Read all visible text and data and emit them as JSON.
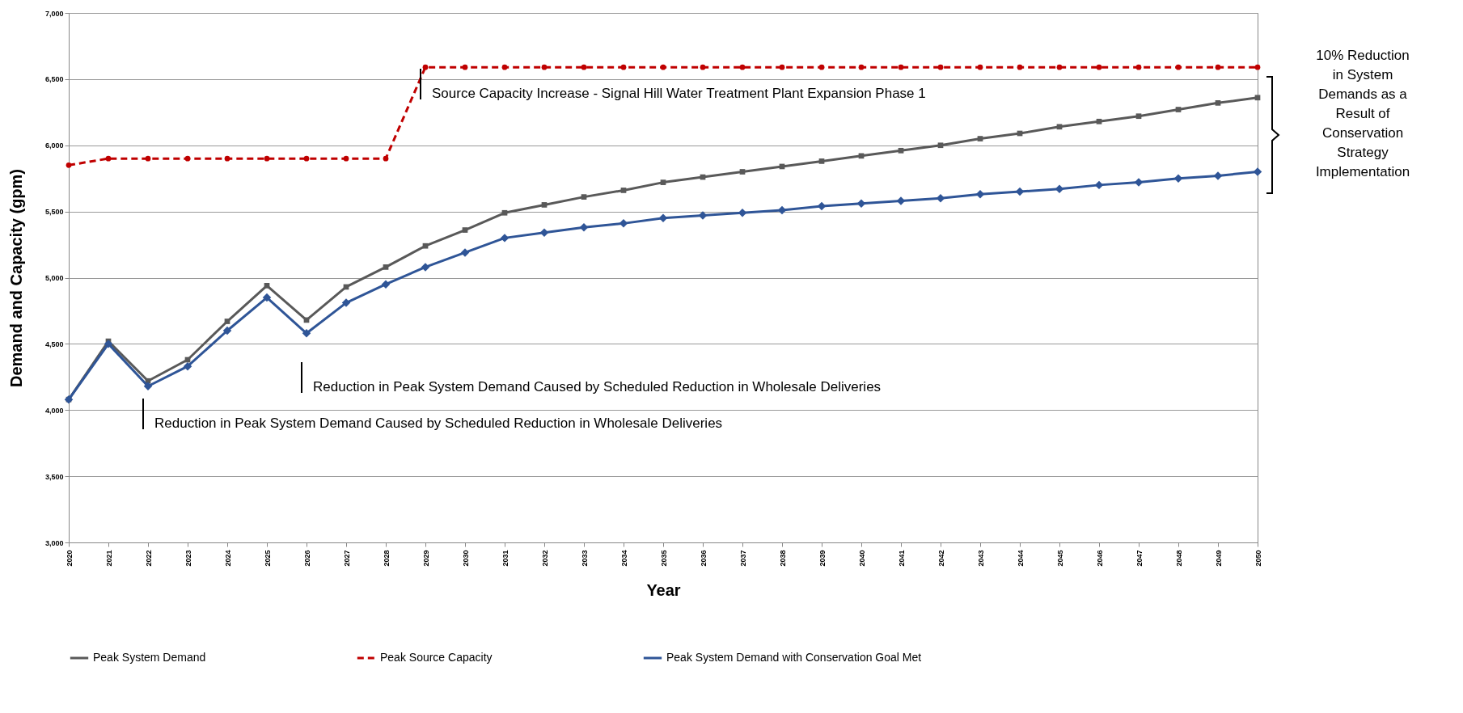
{
  "chart_data": {
    "type": "line",
    "xlabel": "Year",
    "ylabel": "Demand and Capacity (gpm)",
    "categories": [
      "2020",
      "2021",
      "2022",
      "2023",
      "2024",
      "2025",
      "2026",
      "2027",
      "2028",
      "2029",
      "2030",
      "2031",
      "2032",
      "2033",
      "2034",
      "2035",
      "2036",
      "2037",
      "2038",
      "2039",
      "2040",
      "2041",
      "2042",
      "2043",
      "2044",
      "2045",
      "2046",
      "2047",
      "2048",
      "2049",
      "2050"
    ],
    "series": [
      {
        "name": "Peak System Demand",
        "color": "#595959",
        "marker": "square",
        "line_style": "solid",
        "values": [
          4080,
          4520,
          4220,
          4380,
          4670,
          4940,
          4680,
          4930,
          5080,
          5240,
          5360,
          5490,
          5550,
          5610,
          5660,
          5720,
          5760,
          5800,
          5840,
          5880,
          5920,
          5960,
          6000,
          6050,
          6090,
          6140,
          6180,
          6220,
          6270,
          6320,
          6360
        ]
      },
      {
        "name": "Peak Source Capacity",
        "color": "#c00000",
        "marker": "circle",
        "line_style": "dashed",
        "values": [
          5850,
          5900,
          5900,
          5900,
          5900,
          5900,
          5900,
          5900,
          5900,
          6590,
          6590,
          6590,
          6590,
          6590,
          6590,
          6590,
          6590,
          6590,
          6590,
          6590,
          6590,
          6590,
          6590,
          6590,
          6590,
          6590,
          6590,
          6590,
          6590,
          6590,
          6590
        ]
      },
      {
        "name": "Peak System Demand with Conservation Goal Met",
        "color": "#2f5597",
        "marker": "diamond",
        "line_style": "solid",
        "values": [
          4080,
          4500,
          4180,
          4330,
          4600,
          4850,
          4580,
          4810,
          4950,
          5080,
          5190,
          5300,
          5340,
          5380,
          5410,
          5450,
          5470,
          5490,
          5510,
          5540,
          5560,
          5580,
          5600,
          5630,
          5650,
          5670,
          5700,
          5720,
          5750,
          5770,
          5800
        ]
      }
    ],
    "ylim": [
      3000,
      7000
    ],
    "yticks": [
      {
        "value": 3000,
        "label": "3,000"
      },
      {
        "value": 3500,
        "label": "3,500"
      },
      {
        "value": 4000,
        "label": "4,000"
      },
      {
        "value": 4500,
        "label": "4,500"
      },
      {
        "value": 5000,
        "label": "5,000"
      },
      {
        "value": 5500,
        "label": "5,500"
      },
      {
        "value": 6000,
        "label": "6,000"
      },
      {
        "value": 6500,
        "label": "6,500"
      },
      {
        "value": 7000,
        "label": "7,000"
      }
    ],
    "grid": "y",
    "legend": "bottom",
    "annotations": [
      "Source Capacity Increase - Signal Hill Water Treatment Plant Expansion Phase 1",
      "Reduction in Peak System Demand Caused by Scheduled Reduction in Wholesale Deliveries",
      "Reduction in Peak System Demand Caused by Scheduled Reduction in Wholesale Deliveries",
      "10% Reduction in System Demands as a Result of Conservation Strategy Implementation"
    ]
  }
}
